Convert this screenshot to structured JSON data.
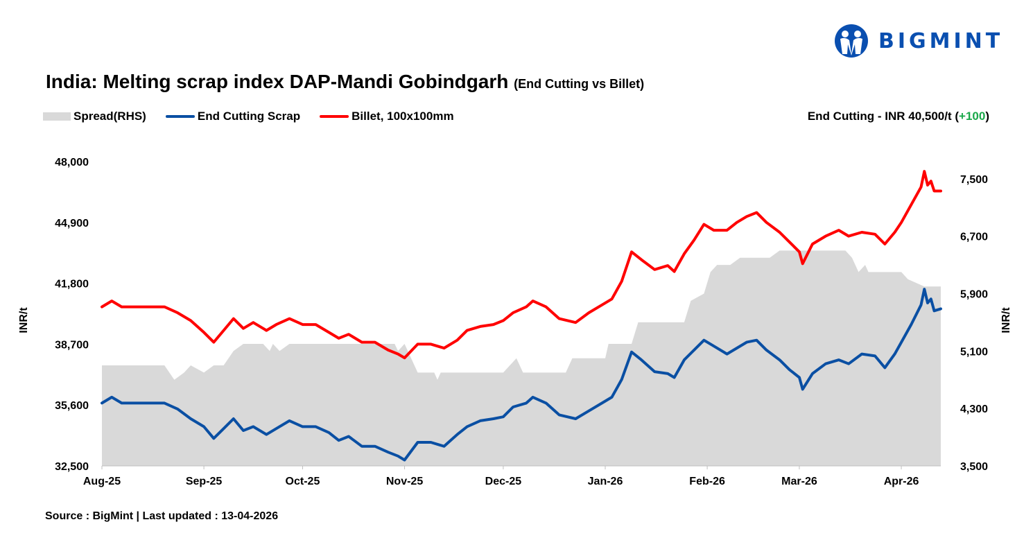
{
  "brand": {
    "name": "BIGMINT",
    "color": "#0a4fb0"
  },
  "header": {
    "title": "India: Melting scrap index DAP-Mandi Gobindgarh",
    "subtitle": "(End Cutting vs Billet)",
    "note_prefix": "End Cutting - INR 40,500/t (",
    "note_change": "+100",
    "note_suffix": ")",
    "note_change_color": "#1aa84a"
  },
  "footer": {
    "source": "Source : BigMint | Last updated : 13-04-2026"
  },
  "chart_data": {
    "type": "line",
    "legend_position": "top-left",
    "grid": false,
    "ylabel_left": "INR/t",
    "ylabel_right": "INR/t",
    "ylim_left": [
      32500,
      48000
    ],
    "yticks_left": [
      "32,500",
      "35,600",
      "38,700",
      "41,800",
      "44,900",
      "48,000"
    ],
    "ylim_right": [
      3500,
      7740
    ],
    "yticks_right": [
      "3,500",
      "4,300",
      "5,100",
      "5,900",
      "6,700",
      "7,500"
    ],
    "xticks": [
      {
        "label": "Aug-25",
        "date": "2025-08-01"
      },
      {
        "label": "Sep-25",
        "date": "2025-09-01"
      },
      {
        "label": "Oct-25",
        "date": "2025-10-01"
      },
      {
        "label": "Nov-25",
        "date": "2025-11-01"
      },
      {
        "label": "Dec-25",
        "date": "2025-12-01"
      },
      {
        "label": "Jan-26",
        "date": "2026-01-01"
      },
      {
        "label": "Feb-26",
        "date": "2026-02-01"
      },
      {
        "label": "Mar-26",
        "date": "2026-03-01"
      },
      {
        "label": "Apr-26",
        "date": "2026-04-01"
      }
    ],
    "xlim": [
      "2025-08-01",
      "2026-04-13"
    ],
    "series": [
      {
        "name": "Spread(RHS)",
        "type": "area",
        "axis": "right",
        "color": "#d9d9d9",
        "points": [
          [
            "2025-08-01",
            4900
          ],
          [
            "2025-08-20",
            4900
          ],
          [
            "2025-08-23",
            4700
          ],
          [
            "2025-08-26",
            4800
          ],
          [
            "2025-08-28",
            4900
          ],
          [
            "2025-09-01",
            4800
          ],
          [
            "2025-09-04",
            4900
          ],
          [
            "2025-09-07",
            4900
          ],
          [
            "2025-09-10",
            5100
          ],
          [
            "2025-09-13",
            5200
          ],
          [
            "2025-09-19",
            5200
          ],
          [
            "2025-09-21",
            5100
          ],
          [
            "2025-09-22",
            5200
          ],
          [
            "2025-09-24",
            5100
          ],
          [
            "2025-09-27",
            5200
          ],
          [
            "2025-10-29",
            5200
          ],
          [
            "2025-10-30",
            5100
          ],
          [
            "2025-11-01",
            5200
          ],
          [
            "2025-11-05",
            4800
          ],
          [
            "2025-11-10",
            4800
          ],
          [
            "2025-11-11",
            4700
          ],
          [
            "2025-11-12",
            4800
          ],
          [
            "2025-12-01",
            4800
          ],
          [
            "2025-12-03",
            4900
          ],
          [
            "2025-12-05",
            5000
          ],
          [
            "2025-12-07",
            4800
          ],
          [
            "2025-12-20",
            4800
          ],
          [
            "2025-12-22",
            5000
          ],
          [
            "2026-01-01",
            5000
          ],
          [
            "2026-01-02",
            5200
          ],
          [
            "2026-01-09",
            5200
          ],
          [
            "2026-01-11",
            5500
          ],
          [
            "2026-01-25",
            5500
          ],
          [
            "2026-01-27",
            5800
          ],
          [
            "2026-01-31",
            5900
          ],
          [
            "2026-02-02",
            6200
          ],
          [
            "2026-02-04",
            6300
          ],
          [
            "2026-02-08",
            6300
          ],
          [
            "2026-02-11",
            6400
          ],
          [
            "2026-02-20",
            6400
          ],
          [
            "2026-02-23",
            6500
          ],
          [
            "2026-03-15",
            6500
          ],
          [
            "2026-03-17",
            6400
          ],
          [
            "2026-03-19",
            6200
          ],
          [
            "2026-03-21",
            6300
          ],
          [
            "2026-03-22",
            6200
          ],
          [
            "2026-04-01",
            6200
          ],
          [
            "2026-04-03",
            6100
          ],
          [
            "2026-04-08",
            6000
          ],
          [
            "2026-04-13",
            6000
          ]
        ]
      },
      {
        "name": "End Cutting Scrap",
        "type": "line",
        "axis": "left",
        "color": "#0a4fa3",
        "points": [
          [
            "2025-08-01",
            35700
          ],
          [
            "2025-08-04",
            36000
          ],
          [
            "2025-08-07",
            35700
          ],
          [
            "2025-08-12",
            35700
          ],
          [
            "2025-08-20",
            35700
          ],
          [
            "2025-08-24",
            35400
          ],
          [
            "2025-08-28",
            34900
          ],
          [
            "2025-09-01",
            34500
          ],
          [
            "2025-09-04",
            33900
          ],
          [
            "2025-09-07",
            34400
          ],
          [
            "2025-09-10",
            34900
          ],
          [
            "2025-09-13",
            34300
          ],
          [
            "2025-09-16",
            34500
          ],
          [
            "2025-09-20",
            34100
          ],
          [
            "2025-09-23",
            34400
          ],
          [
            "2025-09-27",
            34800
          ],
          [
            "2025-10-01",
            34500
          ],
          [
            "2025-10-05",
            34500
          ],
          [
            "2025-10-09",
            34200
          ],
          [
            "2025-10-12",
            33800
          ],
          [
            "2025-10-15",
            34000
          ],
          [
            "2025-10-19",
            33500
          ],
          [
            "2025-10-23",
            33500
          ],
          [
            "2025-10-27",
            33200
          ],
          [
            "2025-10-30",
            33000
          ],
          [
            "2025-11-01",
            32800
          ],
          [
            "2025-11-05",
            33700
          ],
          [
            "2025-11-09",
            33700
          ],
          [
            "2025-11-13",
            33500
          ],
          [
            "2025-11-17",
            34100
          ],
          [
            "2025-11-20",
            34500
          ],
          [
            "2025-11-24",
            34800
          ],
          [
            "2025-11-28",
            34900
          ],
          [
            "2025-12-01",
            35000
          ],
          [
            "2025-12-04",
            35500
          ],
          [
            "2025-12-08",
            35700
          ],
          [
            "2025-12-10",
            36000
          ],
          [
            "2025-12-14",
            35700
          ],
          [
            "2025-12-18",
            35100
          ],
          [
            "2025-12-23",
            34900
          ],
          [
            "2025-12-27",
            35300
          ],
          [
            "2025-12-31",
            35700
          ],
          [
            "2026-01-03",
            36000
          ],
          [
            "2026-01-06",
            36900
          ],
          [
            "2026-01-09",
            38300
          ],
          [
            "2026-01-12",
            37900
          ],
          [
            "2026-01-16",
            37300
          ],
          [
            "2026-01-20",
            37200
          ],
          [
            "2026-01-22",
            37000
          ],
          [
            "2026-01-25",
            37900
          ],
          [
            "2026-01-28",
            38400
          ],
          [
            "2026-01-31",
            38900
          ],
          [
            "2026-02-03",
            38600
          ],
          [
            "2026-02-07",
            38200
          ],
          [
            "2026-02-10",
            38500
          ],
          [
            "2026-02-13",
            38800
          ],
          [
            "2026-02-16",
            38900
          ],
          [
            "2026-02-19",
            38400
          ],
          [
            "2026-02-23",
            37900
          ],
          [
            "2026-02-26",
            37400
          ],
          [
            "2026-03-01",
            37000
          ],
          [
            "2026-03-02",
            36400
          ],
          [
            "2026-03-05",
            37200
          ],
          [
            "2026-03-09",
            37700
          ],
          [
            "2026-03-13",
            37900
          ],
          [
            "2026-03-16",
            37700
          ],
          [
            "2026-03-20",
            38200
          ],
          [
            "2026-03-24",
            38100
          ],
          [
            "2026-03-27",
            37500
          ],
          [
            "2026-03-30",
            38200
          ],
          [
            "2026-04-01",
            38800
          ],
          [
            "2026-04-04",
            39700
          ],
          [
            "2026-04-07",
            40700
          ],
          [
            "2026-04-08",
            41500
          ],
          [
            "2026-04-09",
            40800
          ],
          [
            "2026-04-10",
            41000
          ],
          [
            "2026-04-11",
            40400
          ],
          [
            "2026-04-13",
            40500
          ]
        ]
      },
      {
        "name": "Billet, 100x100mm",
        "type": "line",
        "axis": "left",
        "color": "#ff0000",
        "points": [
          [
            "2025-08-01",
            40600
          ],
          [
            "2025-08-04",
            40900
          ],
          [
            "2025-08-07",
            40600
          ],
          [
            "2025-08-12",
            40600
          ],
          [
            "2025-08-20",
            40600
          ],
          [
            "2025-08-24",
            40300
          ],
          [
            "2025-08-28",
            39900
          ],
          [
            "2025-09-01",
            39300
          ],
          [
            "2025-09-04",
            38800
          ],
          [
            "2025-09-07",
            39400
          ],
          [
            "2025-09-10",
            40000
          ],
          [
            "2025-09-13",
            39500
          ],
          [
            "2025-09-16",
            39800
          ],
          [
            "2025-09-20",
            39400
          ],
          [
            "2025-09-23",
            39700
          ],
          [
            "2025-09-27",
            40000
          ],
          [
            "2025-10-01",
            39700
          ],
          [
            "2025-10-05",
            39700
          ],
          [
            "2025-10-09",
            39300
          ],
          [
            "2025-10-12",
            39000
          ],
          [
            "2025-10-15",
            39200
          ],
          [
            "2025-10-19",
            38800
          ],
          [
            "2025-10-23",
            38800
          ],
          [
            "2025-10-27",
            38400
          ],
          [
            "2025-10-30",
            38200
          ],
          [
            "2025-11-01",
            38000
          ],
          [
            "2025-11-05",
            38700
          ],
          [
            "2025-11-09",
            38700
          ],
          [
            "2025-11-13",
            38500
          ],
          [
            "2025-11-17",
            38900
          ],
          [
            "2025-11-20",
            39400
          ],
          [
            "2025-11-24",
            39600
          ],
          [
            "2025-11-28",
            39700
          ],
          [
            "2025-12-01",
            39900
          ],
          [
            "2025-12-04",
            40300
          ],
          [
            "2025-12-08",
            40600
          ],
          [
            "2025-12-10",
            40900
          ],
          [
            "2025-12-14",
            40600
          ],
          [
            "2025-12-18",
            40000
          ],
          [
            "2025-12-23",
            39800
          ],
          [
            "2025-12-27",
            40300
          ],
          [
            "2025-12-31",
            40700
          ],
          [
            "2026-01-03",
            41000
          ],
          [
            "2026-01-06",
            41900
          ],
          [
            "2026-01-09",
            43400
          ],
          [
            "2026-01-12",
            43000
          ],
          [
            "2026-01-16",
            42500
          ],
          [
            "2026-01-20",
            42700
          ],
          [
            "2026-01-22",
            42400
          ],
          [
            "2026-01-25",
            43300
          ],
          [
            "2026-01-28",
            44000
          ],
          [
            "2026-01-31",
            44800
          ],
          [
            "2026-02-03",
            44500
          ],
          [
            "2026-02-07",
            44500
          ],
          [
            "2026-02-10",
            44900
          ],
          [
            "2026-02-13",
            45200
          ],
          [
            "2026-02-16",
            45400
          ],
          [
            "2026-02-19",
            44900
          ],
          [
            "2026-02-23",
            44400
          ],
          [
            "2026-02-26",
            43900
          ],
          [
            "2026-03-01",
            43400
          ],
          [
            "2026-03-02",
            42800
          ],
          [
            "2026-03-05",
            43800
          ],
          [
            "2026-03-09",
            44200
          ],
          [
            "2026-03-13",
            44500
          ],
          [
            "2026-03-16",
            44200
          ],
          [
            "2026-03-20",
            44400
          ],
          [
            "2026-03-24",
            44300
          ],
          [
            "2026-03-27",
            43800
          ],
          [
            "2026-03-30",
            44400
          ],
          [
            "2026-04-01",
            44900
          ],
          [
            "2026-04-04",
            45800
          ],
          [
            "2026-04-07",
            46700
          ],
          [
            "2026-04-08",
            47500
          ],
          [
            "2026-04-09",
            46800
          ],
          [
            "2026-04-10",
            47000
          ],
          [
            "2026-04-11",
            46500
          ],
          [
            "2026-04-13",
            46500
          ]
        ]
      }
    ]
  }
}
